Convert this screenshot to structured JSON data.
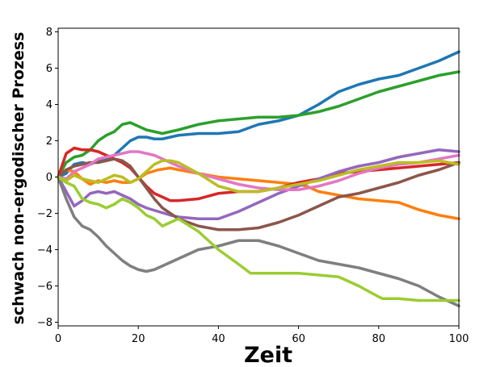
{
  "chart_data": {
    "type": "line",
    "title": "",
    "xlabel": "Zeit",
    "ylabel": "schwach non-ergodischer Prozess",
    "xlim": [
      0,
      100
    ],
    "ylim": [
      -8.2,
      8.2
    ],
    "xticks": [
      0,
      20,
      40,
      60,
      80,
      100
    ],
    "yticks": [
      -8,
      -6,
      -4,
      -2,
      0,
      2,
      4,
      6,
      8
    ],
    "grid": false,
    "legend": "none",
    "series": [
      {
        "color": "#1f77b4",
        "points": [
          [
            0,
            0
          ],
          [
            2,
            0.2
          ],
          [
            4,
            0.7
          ],
          [
            6,
            0.8
          ],
          [
            8,
            0.7
          ],
          [
            10,
            0.9
          ],
          [
            12,
            1.0
          ],
          [
            14,
            1.2
          ],
          [
            16,
            1.6
          ],
          [
            18,
            2.0
          ],
          [
            20,
            2.2
          ],
          [
            22,
            2.2
          ],
          [
            24,
            2.1
          ],
          [
            26,
            2.1
          ],
          [
            28,
            2.2
          ],
          [
            30,
            2.3
          ],
          [
            35,
            2.4
          ],
          [
            40,
            2.4
          ],
          [
            45,
            2.5
          ],
          [
            50,
            2.9
          ],
          [
            55,
            3.1
          ],
          [
            60,
            3.4
          ],
          [
            65,
            4.0
          ],
          [
            70,
            4.7
          ],
          [
            75,
            5.1
          ],
          [
            80,
            5.4
          ],
          [
            85,
            5.6
          ],
          [
            90,
            6.0
          ],
          [
            95,
            6.4
          ],
          [
            100,
            6.9
          ]
        ]
      },
      {
        "color": "#ff7f0e",
        "points": [
          [
            0,
            0
          ],
          [
            2,
            0.4
          ],
          [
            4,
            0.3
          ],
          [
            6,
            -0.1
          ],
          [
            8,
            -0.4
          ],
          [
            10,
            -0.2
          ],
          [
            12,
            -0.3
          ],
          [
            14,
            -0.2
          ],
          [
            16,
            -0.3
          ],
          [
            18,
            -0.3
          ],
          [
            20,
            -0.1
          ],
          [
            22,
            0.2
          ],
          [
            25,
            0.4
          ],
          [
            28,
            0.5
          ],
          [
            30,
            0.4
          ],
          [
            35,
            0.2
          ],
          [
            40,
            0.0
          ],
          [
            45,
            -0.1
          ],
          [
            50,
            -0.2
          ],
          [
            55,
            -0.3
          ],
          [
            60,
            -0.4
          ],
          [
            62,
            -0.5
          ],
          [
            65,
            -0.8
          ],
          [
            70,
            -1.0
          ],
          [
            75,
            -1.2
          ],
          [
            80,
            -1.3
          ],
          [
            85,
            -1.4
          ],
          [
            90,
            -1.8
          ],
          [
            95,
            -2.1
          ],
          [
            100,
            -2.3
          ]
        ]
      },
      {
        "color": "#2ca02c",
        "points": [
          [
            0,
            0
          ],
          [
            2,
            0.8
          ],
          [
            4,
            1.1
          ],
          [
            6,
            1.2
          ],
          [
            8,
            1.5
          ],
          [
            10,
            2.0
          ],
          [
            12,
            2.3
          ],
          [
            14,
            2.5
          ],
          [
            16,
            2.9
          ],
          [
            18,
            3.0
          ],
          [
            20,
            2.8
          ],
          [
            22,
            2.6
          ],
          [
            24,
            2.5
          ],
          [
            26,
            2.4
          ],
          [
            28,
            2.5
          ],
          [
            30,
            2.6
          ],
          [
            35,
            2.9
          ],
          [
            40,
            3.1
          ],
          [
            45,
            3.2
          ],
          [
            50,
            3.3
          ],
          [
            55,
            3.3
          ],
          [
            60,
            3.4
          ],
          [
            65,
            3.6
          ],
          [
            70,
            3.9
          ],
          [
            75,
            4.3
          ],
          [
            80,
            4.7
          ],
          [
            85,
            5.0
          ],
          [
            90,
            5.3
          ],
          [
            95,
            5.6
          ],
          [
            100,
            5.8
          ]
        ]
      },
      {
        "color": "#d62728",
        "points": [
          [
            0,
            0
          ],
          [
            2,
            1.3
          ],
          [
            4,
            1.6
          ],
          [
            6,
            1.5
          ],
          [
            8,
            1.5
          ],
          [
            10,
            1.4
          ],
          [
            12,
            1.2
          ],
          [
            14,
            1.0
          ],
          [
            16,
            0.8
          ],
          [
            18,
            0.5
          ],
          [
            20,
            0.0
          ],
          [
            22,
            -0.5
          ],
          [
            24,
            -0.9
          ],
          [
            26,
            -1.1
          ],
          [
            28,
            -1.3
          ],
          [
            30,
            -1.3
          ],
          [
            35,
            -1.2
          ],
          [
            40,
            -0.9
          ],
          [
            45,
            -0.8
          ],
          [
            50,
            -0.8
          ],
          [
            55,
            -0.6
          ],
          [
            60,
            -0.3
          ],
          [
            65,
            -0.1
          ],
          [
            70,
            0.2
          ],
          [
            75,
            0.3
          ],
          [
            80,
            0.4
          ],
          [
            85,
            0.5
          ],
          [
            90,
            0.6
          ],
          [
            95,
            0.7
          ],
          [
            100,
            0.8
          ]
        ]
      },
      {
        "color": "#9467bd",
        "points": [
          [
            0,
            0
          ],
          [
            2,
            -0.8
          ],
          [
            4,
            -1.6
          ],
          [
            6,
            -1.3
          ],
          [
            8,
            -0.9
          ],
          [
            10,
            -0.8
          ],
          [
            12,
            -0.9
          ],
          [
            14,
            -0.8
          ],
          [
            16,
            -1.0
          ],
          [
            18,
            -1.2
          ],
          [
            20,
            -1.5
          ],
          [
            22,
            -1.7
          ],
          [
            25,
            -1.9
          ],
          [
            28,
            -2.1
          ],
          [
            30,
            -2.2
          ],
          [
            35,
            -2.3
          ],
          [
            40,
            -2.3
          ],
          [
            45,
            -1.9
          ],
          [
            50,
            -1.4
          ],
          [
            55,
            -0.9
          ],
          [
            60,
            -0.5
          ],
          [
            65,
            -0.1
          ],
          [
            70,
            0.3
          ],
          [
            75,
            0.6
          ],
          [
            80,
            0.8
          ],
          [
            85,
            1.1
          ],
          [
            90,
            1.3
          ],
          [
            95,
            1.5
          ],
          [
            100,
            1.4
          ]
        ]
      },
      {
        "color": "#8c564b",
        "points": [
          [
            0,
            0
          ],
          [
            2,
            0.4
          ],
          [
            4,
            0.6
          ],
          [
            6,
            0.7
          ],
          [
            8,
            0.8
          ],
          [
            10,
            0.8
          ],
          [
            12,
            0.9
          ],
          [
            14,
            1.0
          ],
          [
            16,
            0.9
          ],
          [
            18,
            0.6
          ],
          [
            20,
            0.0
          ],
          [
            22,
            -0.6
          ],
          [
            24,
            -1.2
          ],
          [
            26,
            -1.7
          ],
          [
            28,
            -2.0
          ],
          [
            30,
            -2.3
          ],
          [
            35,
            -2.7
          ],
          [
            40,
            -2.9
          ],
          [
            45,
            -2.9
          ],
          [
            50,
            -2.8
          ],
          [
            55,
            -2.5
          ],
          [
            60,
            -2.1
          ],
          [
            65,
            -1.6
          ],
          [
            70,
            -1.1
          ],
          [
            75,
            -0.9
          ],
          [
            80,
            -0.6
          ],
          [
            85,
            -0.3
          ],
          [
            90,
            0.1
          ],
          [
            95,
            0.4
          ],
          [
            100,
            0.8
          ]
        ]
      },
      {
        "color": "#e377c2",
        "points": [
          [
            0,
            0
          ],
          [
            2,
            -0.1
          ],
          [
            4,
            0.3
          ],
          [
            6,
            0.5
          ],
          [
            8,
            0.7
          ],
          [
            10,
            1.0
          ],
          [
            12,
            1.1
          ],
          [
            14,
            1.2
          ],
          [
            16,
            1.3
          ],
          [
            18,
            1.4
          ],
          [
            20,
            1.4
          ],
          [
            22,
            1.3
          ],
          [
            24,
            1.2
          ],
          [
            26,
            1.0
          ],
          [
            28,
            0.8
          ],
          [
            30,
            0.6
          ],
          [
            35,
            0.2
          ],
          [
            40,
            -0.1
          ],
          [
            45,
            -0.4
          ],
          [
            50,
            -0.6
          ],
          [
            55,
            -0.7
          ],
          [
            60,
            -0.7
          ],
          [
            65,
            -0.5
          ],
          [
            70,
            -0.2
          ],
          [
            75,
            0.2
          ],
          [
            80,
            0.5
          ],
          [
            85,
            0.7
          ],
          [
            90,
            0.8
          ],
          [
            95,
            1.0
          ],
          [
            100,
            1.2
          ]
        ]
      },
      {
        "color": "#7f7f7f",
        "points": [
          [
            0,
            0
          ],
          [
            2,
            -1.2
          ],
          [
            4,
            -2.2
          ],
          [
            6,
            -2.7
          ],
          [
            8,
            -2.9
          ],
          [
            10,
            -3.3
          ],
          [
            12,
            -3.8
          ],
          [
            14,
            -4.2
          ],
          [
            16,
            -4.6
          ],
          [
            18,
            -4.9
          ],
          [
            20,
            -5.1
          ],
          [
            22,
            -5.2
          ],
          [
            24,
            -5.1
          ],
          [
            26,
            -4.9
          ],
          [
            28,
            -4.7
          ],
          [
            30,
            -4.5
          ],
          [
            35,
            -4.0
          ],
          [
            40,
            -3.8
          ],
          [
            45,
            -3.5
          ],
          [
            50,
            -3.5
          ],
          [
            55,
            -3.8
          ],
          [
            60,
            -4.2
          ],
          [
            65,
            -4.6
          ],
          [
            70,
            -4.8
          ],
          [
            75,
            -5.0
          ],
          [
            80,
            -5.3
          ],
          [
            85,
            -5.6
          ],
          [
            90,
            -6.0
          ],
          [
            95,
            -6.6
          ],
          [
            100,
            -7.1
          ]
        ]
      },
      {
        "color": "#bcbd22",
        "points": [
          [
            0,
            0
          ],
          [
            2,
            -0.2
          ],
          [
            4,
            0.1
          ],
          [
            6,
            -0.1
          ],
          [
            8,
            -0.2
          ],
          [
            10,
            -0.3
          ],
          [
            12,
            -0.1
          ],
          [
            14,
            0.1
          ],
          [
            16,
            0.0
          ],
          [
            18,
            -0.3
          ],
          [
            20,
            -0.1
          ],
          [
            22,
            0.3
          ],
          [
            24,
            0.7
          ],
          [
            26,
            0.9
          ],
          [
            28,
            0.9
          ],
          [
            30,
            0.8
          ],
          [
            35,
            0.2
          ],
          [
            40,
            -0.5
          ],
          [
            45,
            -0.8
          ],
          [
            50,
            -0.8
          ],
          [
            55,
            -0.6
          ],
          [
            60,
            -0.4
          ],
          [
            65,
            -0.2
          ],
          [
            70,
            0.1
          ],
          [
            75,
            0.4
          ],
          [
            80,
            0.6
          ],
          [
            85,
            0.8
          ],
          [
            90,
            0.8
          ],
          [
            95,
            0.9
          ],
          [
            100,
            0.7
          ]
        ]
      },
      {
        "color": "#9acd32",
        "points": [
          [
            0,
            0
          ],
          [
            2,
            -0.3
          ],
          [
            4,
            -0.5
          ],
          [
            6,
            -1.2
          ],
          [
            8,
            -1.4
          ],
          [
            10,
            -1.5
          ],
          [
            12,
            -1.7
          ],
          [
            14,
            -1.5
          ],
          [
            16,
            -1.2
          ],
          [
            18,
            -1.4
          ],
          [
            20,
            -1.7
          ],
          [
            22,
            -2.1
          ],
          [
            24,
            -2.3
          ],
          [
            26,
            -2.7
          ],
          [
            28,
            -2.5
          ],
          [
            30,
            -2.3
          ],
          [
            35,
            -3.0
          ],
          [
            40,
            -4.0
          ],
          [
            45,
            -4.8
          ],
          [
            48,
            -5.3
          ],
          [
            55,
            -5.3
          ],
          [
            60,
            -5.3
          ],
          [
            65,
            -5.4
          ],
          [
            70,
            -5.5
          ],
          [
            75,
            -6.0
          ],
          [
            80,
            -6.6
          ],
          [
            81,
            -6.7
          ],
          [
            85,
            -6.7
          ],
          [
            90,
            -6.8
          ],
          [
            95,
            -6.8
          ],
          [
            100,
            -6.8
          ]
        ]
      }
    ]
  }
}
